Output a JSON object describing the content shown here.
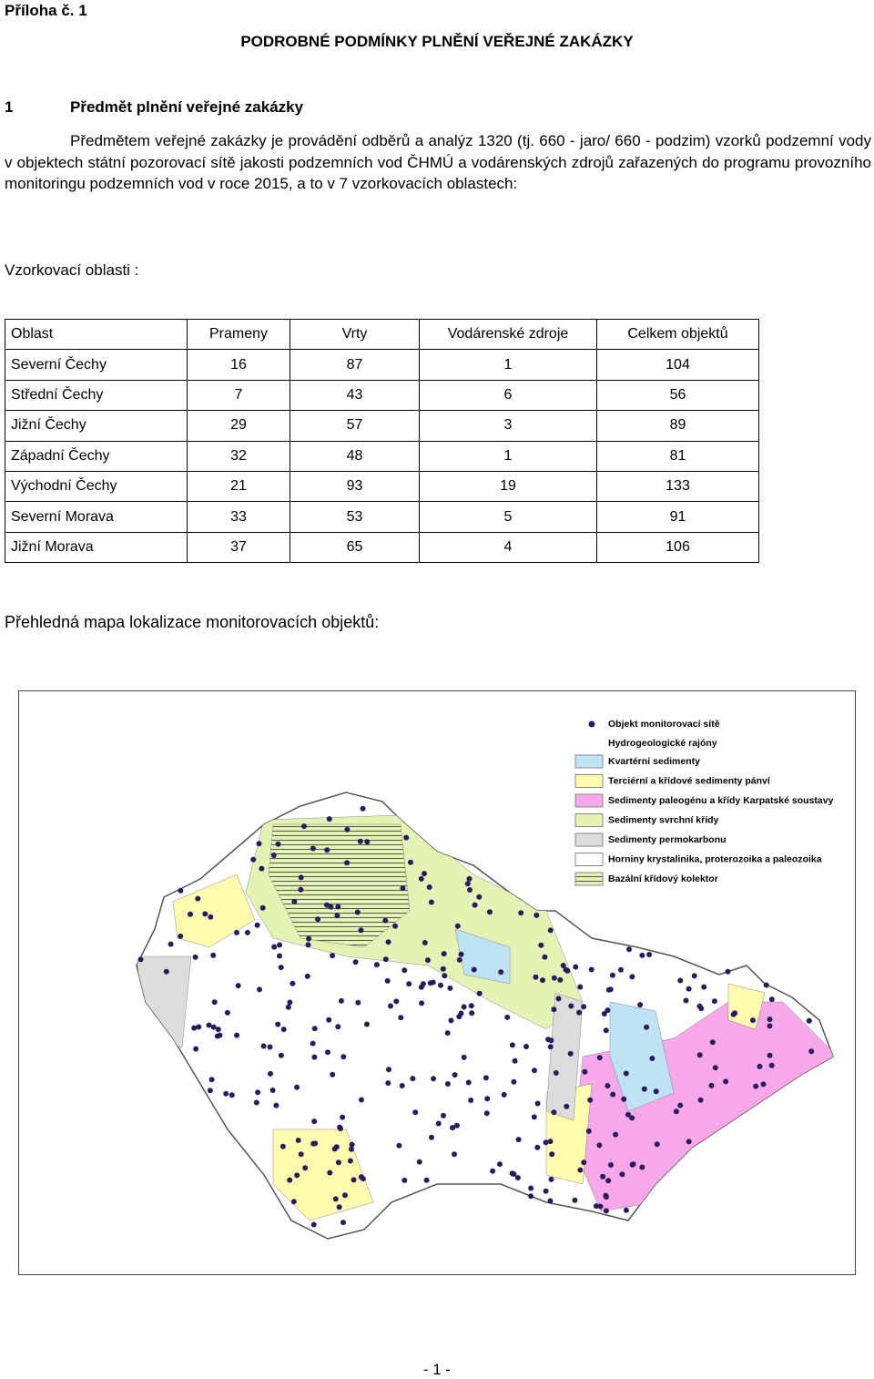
{
  "header": {
    "annex": "Příloha č. 1",
    "title": "PODROBNÉ PODMÍNKY PLNĚNÍ VEŘEJNÉ ZAKÁZKY"
  },
  "section": {
    "number": "1",
    "title": "Předmět plnění veřejné zakázky",
    "paragraph": "Předmětem veřejné zakázky je provádění odběrů a analýz 1320 (tj. 660 - jaro/ 660 - podzim) vzorků podzemní vody v objektech státní pozorovací sítě jakosti podzemních vod ČHMÚ a vodárenských zdrojů zařazených do programu provozního monitoringu podzemních vod v roce 2015, a to v 7 vzorkovacích oblastech:"
  },
  "areas_heading": "Vzorkovací oblasti :",
  "table": {
    "header": [
      "Oblast",
      "Prameny",
      "Vrty",
      "Vodárenské zdroje",
      "Celkem objektů"
    ],
    "rows": [
      [
        "Severní Čechy",
        16,
        87,
        1,
        104
      ],
      [
        "Střední Čechy",
        7,
        43,
        6,
        56
      ],
      [
        "Jižní Čechy",
        29,
        57,
        3,
        89
      ],
      [
        "Západní Čechy",
        32,
        48,
        1,
        81
      ],
      [
        "Východní Čechy",
        21,
        93,
        19,
        133
      ],
      [
        "Severní Morava",
        33,
        53,
        5,
        91
      ],
      [
        "Jižní Morava",
        37,
        65,
        4,
        106
      ]
    ]
  },
  "map_caption": "Přehledná mapa lokalizace monitorovacích objektů:",
  "map": {
    "legend": {
      "objects": "Objekt monitorovací sítě",
      "regions_heading": "Hydrogeologické rajóny",
      "items": [
        "Kvartérní sedimenty",
        "Terciérní a křídové sedimenty pánví",
        "Sedimenty paleogénu a křídy Karpatské soustavy",
        "Sedimenty svrchní křídy",
        "Sedimenty permokarbonu",
        "Horniny krystalinika, proterozoika a paleozoika",
        "Bazální křídový kolektor"
      ]
    }
  },
  "footer": {
    "page": "- 1 -"
  }
}
